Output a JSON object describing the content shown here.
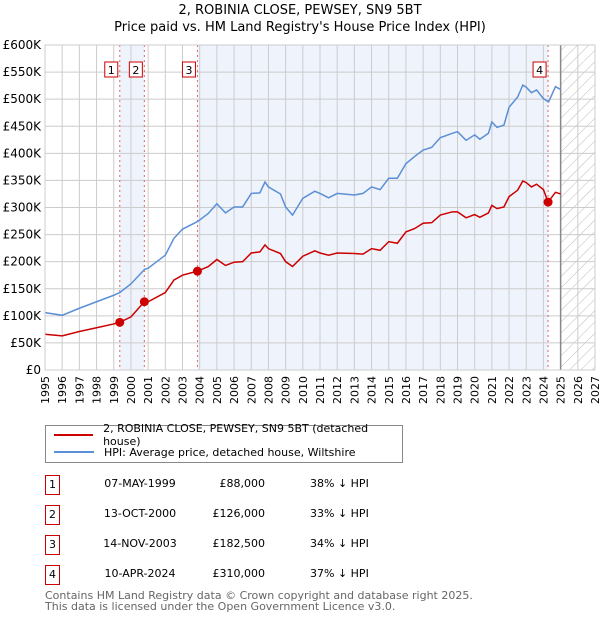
{
  "chart_data": {
    "type": "line",
    "title": "2, ROBINIA CLOSE, PEWSEY, SN9 5BT",
    "subtitle": "Price paid vs. HM Land Registry's House Price Index (HPI)",
    "xlim": [
      1995,
      2027
    ],
    "ylim": [
      0,
      600000
    ],
    "x_ticks": [
      "1995",
      "1996",
      "1997",
      "1998",
      "1999",
      "2000",
      "2001",
      "2002",
      "2003",
      "2004",
      "2005",
      "2006",
      "2007",
      "2008",
      "2009",
      "2010",
      "2011",
      "2012",
      "2013",
      "2014",
      "2015",
      "2016",
      "2017",
      "2018",
      "2019",
      "2020",
      "2021",
      "2022",
      "2023",
      "2024",
      "2025",
      "2026",
      "2027"
    ],
    "y_ticks": [
      "£0",
      "£50K",
      "£100K",
      "£150K",
      "£200K",
      "£250K",
      "£300K",
      "£350K",
      "£400K",
      "£450K",
      "£500K",
      "£550K",
      "£600K"
    ],
    "grid": true,
    "forecast_hatch_from": 2025,
    "series": [
      {
        "name": "2, ROBINIA CLOSE, PEWSEY, SN9 5BT (detached house)",
        "color": "#cc0000",
        "x": [
          1995,
          1996,
          1997,
          1998,
          1999,
          1999.35,
          2000,
          2000.78,
          2001,
          2002,
          2002.5,
          2003,
          2003.87,
          2004.5,
          2005,
          2005.5,
          2006,
          2006.5,
          2007,
          2007.5,
          2007.8,
          2008,
          2008.7,
          2009,
          2009.4,
          2010,
          2010.7,
          2011,
          2011.5,
          2012,
          2013,
          2013.5,
          2014,
          2014.5,
          2015,
          2015.5,
          2016,
          2016.5,
          2017,
          2017.5,
          2018,
          2018.7,
          2019,
          2019.5,
          2020,
          2020.3,
          2020.8,
          2021,
          2021.3,
          2021.7,
          2022,
          2022.5,
          2022.8,
          2023,
          2023.3,
          2023.6,
          2024,
          2024.27,
          2024.7,
          2025
        ],
        "y": [
          66,
          63,
          71,
          78,
          85,
          88,
          98,
          126,
          126,
          143,
          166,
          175,
          182.5,
          191,
          204,
          193,
          199,
          200,
          216,
          218,
          231,
          224,
          215,
          200,
          191,
          210,
          220,
          216,
          212,
          216,
          215,
          214,
          224,
          221,
          237,
          234,
          255,
          261,
          271,
          272,
          286,
          292,
          292,
          281,
          287,
          282,
          290,
          304,
          298,
          301,
          320,
          332,
          349,
          346,
          338,
          343,
          333,
          310,
          328,
          325
        ]
      },
      {
        "name": "HPI: Average price, detached house, Wiltshire",
        "color": "#5b8fd6",
        "x": [
          1995,
          1996,
          1997,
          1998,
          1999,
          1999.35,
          2000,
          2000.8,
          2001,
          2002,
          2002.5,
          2003,
          2003.87,
          2004.5,
          2005,
          2005.5,
          2006,
          2006.5,
          2007,
          2007.5,
          2007.8,
          2008,
          2008.7,
          2009,
          2009.4,
          2010,
          2010.7,
          2011,
          2011.5,
          2012,
          2013,
          2013.5,
          2014,
          2014.5,
          2015,
          2015.5,
          2016,
          2016.5,
          2017,
          2017.5,
          2018,
          2018.7,
          2019,
          2019.5,
          2020,
          2020.3,
          2020.8,
          2021,
          2021.3,
          2021.7,
          2022,
          2022.5,
          2022.8,
          2023,
          2023.3,
          2023.6,
          2024,
          2024.3,
          2024.7,
          2025
        ],
        "y": [
          106,
          101,
          114,
          126,
          138,
          143,
          159,
          186,
          188,
          212,
          243,
          260,
          274,
          289,
          307,
          290,
          301,
          301,
          326,
          327,
          347,
          338,
          325,
          301,
          286,
          317,
          330,
          326,
          318,
          326,
          323,
          326,
          338,
          333,
          354,
          354,
          381,
          394,
          406,
          411,
          429,
          437,
          440,
          424,
          434,
          426,
          437,
          458,
          448,
          452,
          485,
          504,
          526,
          522,
          512,
          517,
          501,
          495,
          523,
          518
        ]
      }
    ],
    "y_units": "thousands GBP",
    "sales": [
      {
        "label": "1",
        "x": 1999.35,
        "price": 88
      },
      {
        "label": "2",
        "x": 2000.78,
        "price": 126
      },
      {
        "label": "3",
        "x": 2003.87,
        "price": 182.5
      },
      {
        "label": "4",
        "x": 2024.27,
        "price": 310
      }
    ]
  },
  "legend": {
    "red": "2, ROBINIA CLOSE, PEWSEY, SN9 5BT (detached house)",
    "blue": "HPI: Average price, detached house, Wiltshire"
  },
  "table": [
    {
      "num": "1",
      "date": "07-MAY-1999",
      "price": "£88,000",
      "pct": "38% ↓ HPI"
    },
    {
      "num": "2",
      "date": "13-OCT-2000",
      "price": "£126,000",
      "pct": "33% ↓ HPI"
    },
    {
      "num": "3",
      "date": "14-NOV-2003",
      "price": "£182,500",
      "pct": "34% ↓ HPI"
    },
    {
      "num": "4",
      "date": "10-APR-2024",
      "price": "£310,000",
      "pct": "37% ↓ HPI"
    }
  ],
  "footer": {
    "line1": "Contains HM Land Registry data © Crown copyright and database right 2025.",
    "line2": "This data is licensed under the Open Government Licence v3.0."
  }
}
